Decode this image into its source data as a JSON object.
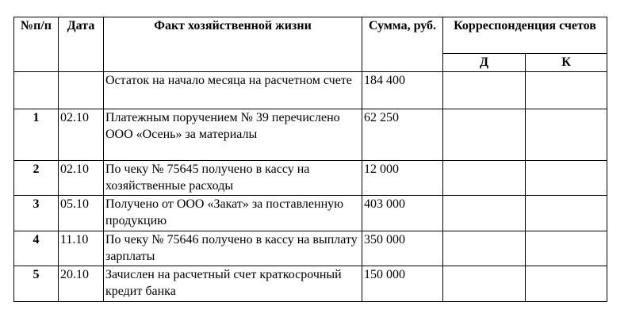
{
  "headers": {
    "num": "№п/п",
    "date": "Дата",
    "fact": "Факт хозяйственной жизни",
    "sum": "Сумма, руб.",
    "corr": "Корреспонденция счетов",
    "debit": "Д",
    "credit": "К"
  },
  "rows": [
    {
      "num": "",
      "date": "",
      "fact": "Остаток на начало месяца на расчетном счете",
      "sum": "184 400",
      "d": "",
      "k": ""
    },
    {
      "num": "1",
      "date": "02.10",
      "fact": "Платежным поручением № 39 перечислено ООО «Осень» за материалы",
      "sum": "62 250",
      "d": "",
      "k": ""
    },
    {
      "num": "2",
      "date": "02.10",
      "fact": "По чеку № 75645 получено в кассу на хозяйственные расходы",
      "sum": "12 000",
      "d": "",
      "k": ""
    },
    {
      "num": "3",
      "date": "05.10",
      "fact": "Получено от ООО «Закат» за поставленную продукцию",
      "sum": "403 000",
      "d": "",
      "k": ""
    },
    {
      "num": "4",
      "date": "11.10",
      "fact": "По чеку № 75646 получено в кассу на выплату зарплаты",
      "sum": "350 000",
      "d": "",
      "k": ""
    },
    {
      "num": "5",
      "date": "20.10",
      "fact": "Зачислен на расчетный счет краткосрочный кредит банка",
      "sum": "150 000",
      "d": "",
      "k": ""
    }
  ]
}
